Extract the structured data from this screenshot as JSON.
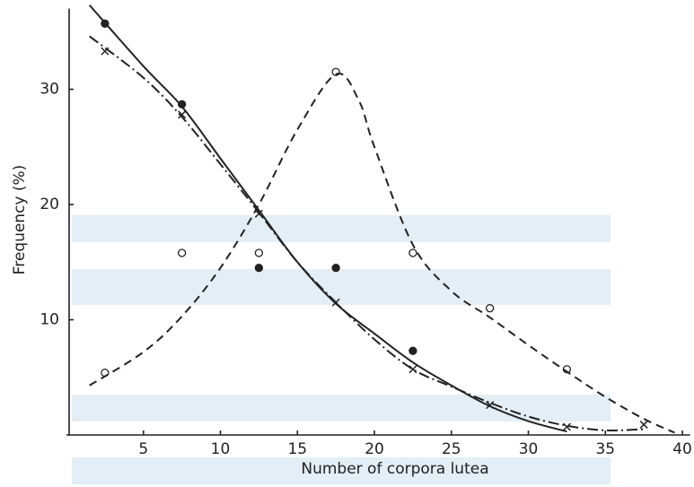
{
  "chart_data": {
    "type": "scatter",
    "xlabel": "Number of corpora lutea",
    "ylabel": "Frequency (%)",
    "xlim": [
      0,
      40.5
    ],
    "ylim": [
      0,
      37
    ],
    "xticks": [
      5,
      10,
      15,
      20,
      25,
      30,
      35,
      40
    ],
    "yticks": [
      10,
      20,
      30
    ],
    "grid": false,
    "series": [
      {
        "style": "filled-circle",
        "color": "#222",
        "x": [
          2.5,
          7.5,
          12.5,
          17.5,
          22.5
        ],
        "values": [
          35.7,
          28.7,
          14.5,
          14.5,
          7.3
        ]
      },
      {
        "style": "cross",
        "color": "#222",
        "x": [
          2.5,
          7.5,
          12.5,
          17.5,
          22.5,
          27.5,
          32.5,
          37.5
        ],
        "values": [
          33.3,
          27.8,
          19.2,
          11.5,
          5.7,
          2.6,
          0.7,
          0.9
        ]
      },
      {
        "style": "open-circle",
        "color": "#222",
        "x": [
          2.5,
          7.5,
          12.5,
          17.5,
          22.5,
          27.5,
          32.5
        ],
        "values": [
          5.4,
          15.8,
          15.8,
          31.5,
          15.8,
          11,
          5.7
        ]
      },
      {
        "style": "solid",
        "color": "#222",
        "x": [
          1.5,
          5,
          7.5,
          10,
          12.5,
          15,
          17.5,
          20,
          22.5,
          25,
          27.5,
          30,
          32.5
        ],
        "values": [
          37.3,
          32,
          28.5,
          24,
          19.5,
          15,
          11.4,
          8.8,
          6.3,
          4.3,
          2.5,
          1.2,
          0.3
        ]
      },
      {
        "style": "dash-dot",
        "color": "#222",
        "x": [
          1.5,
          5,
          7.5,
          10,
          12.5,
          15,
          17.5,
          20,
          22.5,
          25,
          27.5,
          30,
          32.5,
          35,
          37.5
        ],
        "values": [
          34.6,
          31,
          27.6,
          23.5,
          19.3,
          15,
          11.5,
          8.3,
          5.7,
          4.2,
          2.8,
          1.6,
          0.8,
          0.4,
          0.5
        ]
      },
      {
        "style": "dash",
        "color": "#222",
        "x": [
          1.5,
          5,
          7.5,
          10,
          12.5,
          15,
          17.5,
          19,
          20,
          22.5,
          25,
          27.5,
          30,
          32.5,
          35,
          37.5,
          39.5
        ],
        "values": [
          4.3,
          7.2,
          10.3,
          14.5,
          20,
          26.5,
          31.3,
          29,
          25,
          16.5,
          12.5,
          10.2,
          7.8,
          5.5,
          3.3,
          1.4,
          0.2
        ]
      }
    ]
  }
}
